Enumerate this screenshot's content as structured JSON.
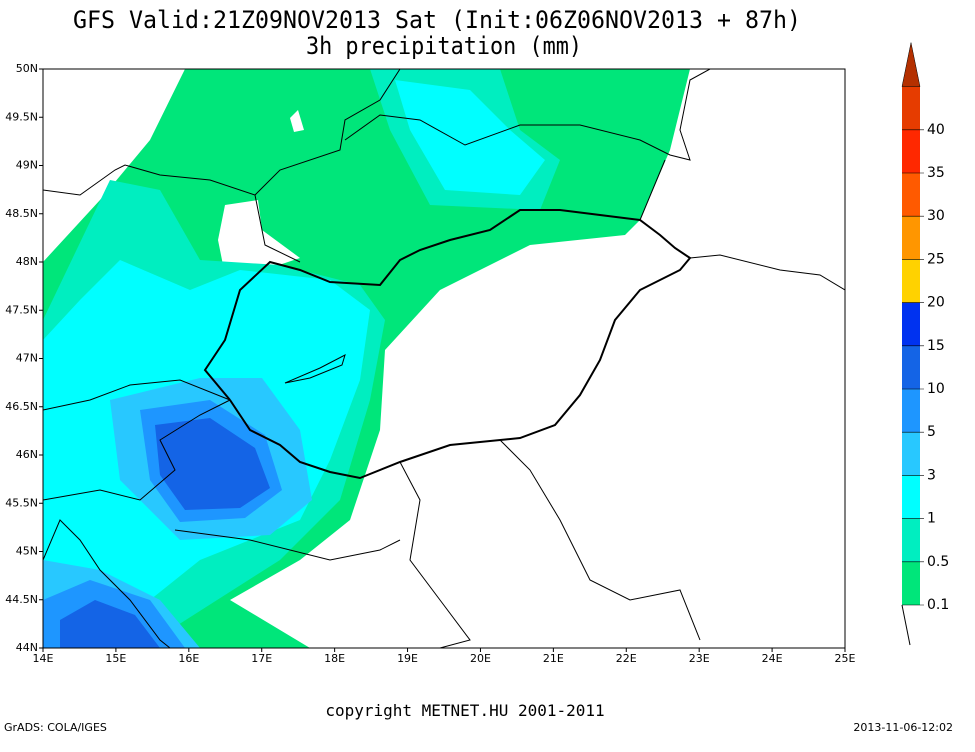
{
  "header": {
    "title": "GFS Valid:21Z09NOV2013 Sat (Init:06Z06NOV2013 + 87h)",
    "subtitle": "3h precipitation (mm)"
  },
  "map": {
    "lon_labels": [
      "14E",
      "15E",
      "16E",
      "17E",
      "18E",
      "19E",
      "20E",
      "21E",
      "22E",
      "23E",
      "24E",
      "25E"
    ],
    "lat_labels": [
      "44N",
      "44.5N",
      "45N",
      "45.5N",
      "46N",
      "46.5N",
      "47N",
      "47.5N",
      "48N",
      "48.5N",
      "49N",
      "49.5N",
      "50N"
    ]
  },
  "colorbar": {
    "labels": [
      "0.1",
      "0.5",
      "1",
      "3",
      "5",
      "10",
      "15",
      "20",
      "25",
      "30",
      "35",
      "40"
    ],
    "colors": [
      "#00e67a",
      "#00eec0",
      "#00ffff",
      "#28c8ff",
      "#1e96ff",
      "#1464e6",
      "#0032f0",
      "#ffd200",
      "#ff9600",
      "#ff5a00",
      "#ff2800",
      "#e63c00",
      "#b43000"
    ]
  },
  "footer": {
    "copyright": "copyright METNET.HU 2001-2011",
    "left": "GrADS: COLA/IGES",
    "right": "2013-11-06-12:02"
  }
}
